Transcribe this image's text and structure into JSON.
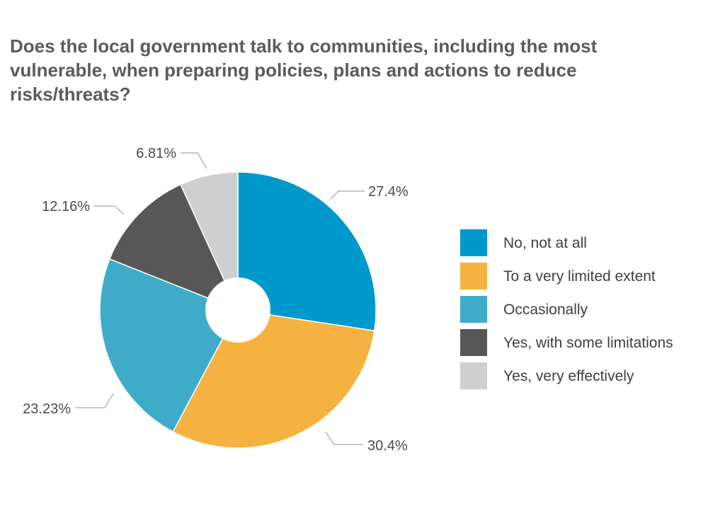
{
  "chart_data": {
    "type": "pie",
    "title": "Does the local government talk to communities, including the most vulnerable, when preparing policies, plans and actions to reduce risks/threats?",
    "categories": [
      "No, not at all",
      "To a very limited extent",
      "Occasionally",
      "Yes, with some limitations",
      "Yes, very effectively"
    ],
    "values": [
      27.4,
      30.4,
      23.23,
      12.16,
      6.81
    ],
    "value_labels": [
      "27.4%",
      "30.4%",
      "23.23%",
      "12.16%",
      "6.81%"
    ],
    "colors": [
      "#0099cc",
      "#f5b240",
      "#3eacc8",
      "#575757",
      "#cfcfcf"
    ],
    "legend": {
      "position": "right"
    },
    "start_angle": "12 o'clock",
    "direction": "clockwise",
    "donut_hole": true
  }
}
